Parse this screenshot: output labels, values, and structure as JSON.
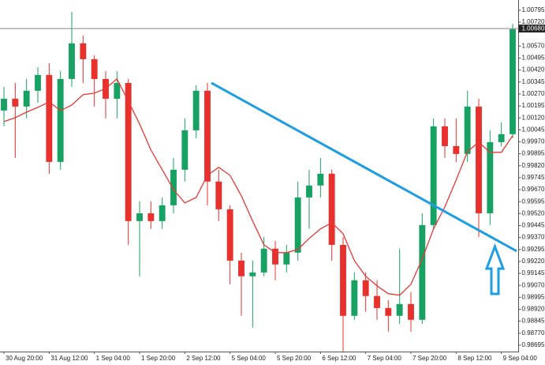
{
  "chart_data": {
    "type": "candlestick",
    "categories": [
      "30 Aug 20:00",
      null,
      null,
      null,
      "31 Aug 12:00",
      null,
      null,
      null,
      "1 Sep 04:00",
      null,
      null,
      null,
      "1 Sep 20:00",
      null,
      null,
      null,
      "2 Sep 12:00",
      null,
      null,
      null,
      "5 Sep 04:00",
      null,
      null,
      null,
      "5 Sep 20:00",
      null,
      null,
      null,
      "6 Sep 12:00",
      null,
      null,
      null,
      "7 Sep 04:00",
      null,
      null,
      null,
      "7 Sep 20:00",
      null,
      null,
      null,
      "8 Sep 12:00",
      null,
      null,
      null,
      "9 Sep 04:00",
      null
    ],
    "open": [
      1.00166,
      1.0024,
      1.00191,
      1.0029,
      1.00389,
      0.99844,
      1.00364,
      1.00587,
      1.00488,
      1.00364,
      1.0024,
      1.00339,
      0.99473,
      0.99522,
      0.99473,
      0.99572,
      0.99795,
      1.00042,
      1.0029,
      0.99721,
      0.99547,
      0.99225,
      0.99127,
      0.99151,
      0.993,
      0.99201,
      0.99275,
      0.99621,
      0.99696,
      0.9977,
      0.99324,
      0.98879,
      0.99102,
      0.99003,
      0.98928,
      0.98879,
      0.98953,
      0.98854,
      0.99448,
      1.00067,
      0.99943,
      0.99894,
      1.00191,
      0.99522,
      0.99968,
      1.00018
    ],
    "high": [
      1.00315,
      1.00339,
      1.00364,
      1.00438,
      1.00463,
      1.00413,
      1.00785,
      1.00636,
      1.00512,
      1.00413,
      1.00413,
      1.00364,
      0.99597,
      0.99597,
      0.99621,
      0.99869,
      1.00117,
      1.00324,
      1.00339,
      0.99795,
      0.99572,
      0.99275,
      0.99225,
      0.99374,
      0.99349,
      0.99324,
      0.99721,
      0.99795,
      0.99869,
      0.99795,
      0.99374,
      0.99151,
      0.99151,
      0.99102,
      0.98978,
      0.993,
      0.99028,
      0.99522,
      1.00117,
      1.00117,
      1.00117,
      1.0029,
      1.0024,
      1.00042,
      1.00092,
      1.0071
    ],
    "low": [
      1.00067,
      0.99869,
      1.00117,
      1.00215,
      0.9977,
      0.99795,
      1.00315,
      1.00339,
      1.00191,
      1.00117,
      1.00117,
      0.99324,
      0.99127,
      0.99424,
      0.99424,
      0.99522,
      0.99721,
      0.99993,
      0.99572,
      0.99473,
      0.99077,
      0.98879,
      0.98805,
      0.99127,
      0.99102,
      0.99151,
      0.99225,
      0.99424,
      0.99621,
      0.99225,
      0.98656,
      0.98854,
      0.98904,
      0.98854,
      0.9878,
      0.98829,
      0.9878,
      0.98829,
      0.99424,
      0.99869,
      0.99844,
      0.99844,
      0.99374,
      0.99448,
      0.99943,
      0.99993
    ],
    "close": [
      1.0024,
      1.00191,
      1.0029,
      1.00389,
      0.99844,
      1.00364,
      1.00587,
      1.00488,
      1.00364,
      1.0024,
      1.00339,
      0.99473,
      0.99522,
      0.99473,
      0.99572,
      0.99795,
      1.00042,
      1.0029,
      0.99721,
      0.99547,
      0.99225,
      0.99127,
      0.99151,
      0.993,
      0.99201,
      0.99275,
      0.99621,
      0.99696,
      0.9977,
      0.99324,
      0.98879,
      0.99102,
      0.99003,
      0.98928,
      0.98879,
      0.98953,
      0.98854,
      0.99448,
      1.00067,
      0.99943,
      0.99894,
      1.00191,
      0.99522,
      0.99968,
      1.00018,
      1.00676
    ],
    "ma_values": [
      1.00097,
      1.00121,
      1.00156,
      1.00186,
      1.0022,
      1.00166,
      1.00201,
      1.00265,
      1.00275,
      1.00305,
      1.00364,
      1.00225,
      1.00082,
      0.99919,
      0.99795,
      0.99671,
      0.99587,
      0.99621,
      0.9976,
      0.9981,
      0.9976,
      0.99631,
      0.99473,
      0.99324,
      0.99275,
      0.99275,
      0.99295,
      0.99364,
      0.99424,
      0.99463,
      0.99394,
      0.99225,
      0.99127,
      0.99067,
      0.99018,
      0.99008,
      0.99077,
      0.99235,
      0.99424,
      0.99562,
      0.9973,
      0.99909,
      0.99968,
      0.99904,
      0.99904,
      1.00008
    ],
    "up_color": "#17a263",
    "down_color": "#e8302c",
    "ma_color": "#e53935",
    "trendline": {
      "start_index": 18,
      "start_price": 1.00339,
      "end_index": 45,
      "end_price": 0.99285,
      "color": "#1e9de0"
    },
    "current_price": {
      "value": 1.0068,
      "label": "1.00680"
    },
    "ylim": [
      0.98655,
      1.00859
    ],
    "yticks": [
      {
        "value": 1.00795,
        "label": "1.00795"
      },
      {
        "value": 1.0072,
        "label": "1.00720"
      },
      {
        "value": 1.0057,
        "label": "1.00570"
      },
      {
        "value": 1.00495,
        "label": "1.00495"
      },
      {
        "value": 1.0042,
        "label": "1.00420"
      },
      {
        "value": 1.00345,
        "label": "1.00345"
      },
      {
        "value": 1.0027,
        "label": "1.00270"
      },
      {
        "value": 1.00195,
        "label": "1.00195"
      },
      {
        "value": 1.0012,
        "label": "1.00120"
      },
      {
        "value": 1.00045,
        "label": "1.00045"
      },
      {
        "value": 0.9997,
        "label": "0.99970"
      },
      {
        "value": 0.99895,
        "label": "0.99895"
      },
      {
        "value": 0.9982,
        "label": "0.99820"
      },
      {
        "value": 0.99745,
        "label": "0.99745"
      },
      {
        "value": 0.9967,
        "label": "0.99670"
      },
      {
        "value": 0.99595,
        "label": "0.99595"
      },
      {
        "value": 0.9952,
        "label": "0.99520"
      },
      {
        "value": 0.99445,
        "label": "0.99445"
      },
      {
        "value": 0.9937,
        "label": "0.99370"
      },
      {
        "value": 0.99295,
        "label": "0.99295"
      },
      {
        "value": 0.9922,
        "label": "0.99220"
      },
      {
        "value": 0.99145,
        "label": "0.99145"
      },
      {
        "value": 0.9907,
        "label": "0.99070"
      },
      {
        "value": 0.98995,
        "label": "0.98995"
      },
      {
        "value": 0.9892,
        "label": "0.98920"
      },
      {
        "value": 0.98845,
        "label": "0.98845"
      },
      {
        "value": 0.9877,
        "label": "0.98770"
      },
      {
        "value": 0.98695,
        "label": "0.98695"
      }
    ],
    "grid": false
  }
}
